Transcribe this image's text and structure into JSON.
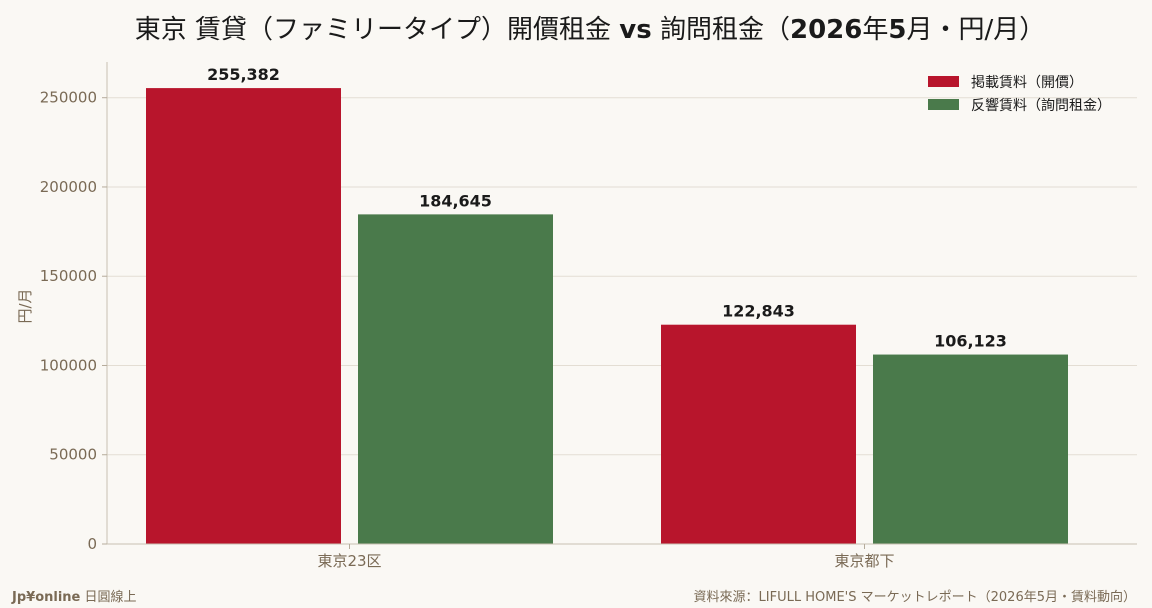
{
  "chart_data": {
    "type": "bar",
    "title_main": "東京 賃貸（ファミリータイプ）開價租金 ",
    "title_vs": "vs",
    "title_mid": " 詢問租金（",
    "title_year": "2026",
    "title_nen": "年",
    "title_month": "5",
    "title_tail": "月・円/月）",
    "ylabel": "円/月",
    "xlabel": "",
    "categories": [
      "東京23区",
      "東京都下"
    ],
    "series": [
      {
        "name": "掲載賃料（開價）",
        "color": "#b8152c",
        "values": [
          255382,
          122843
        ],
        "labels": [
          "255,382",
          "122,843"
        ]
      },
      {
        "name": "反響賃料（詢問租金）",
        "color": "#4a7a4b",
        "values": [
          184645,
          106123
        ],
        "labels": [
          "184,645",
          "106,123"
        ]
      }
    ],
    "ylim": [
      0,
      270000
    ],
    "yticks": [
      0,
      50000,
      100000,
      150000,
      200000,
      250000
    ],
    "grid": true,
    "legend_position": "top-right"
  },
  "footer": {
    "brand": "Jp¥online",
    "brand_suffix": " 日圓線上",
    "source": "資料來源：LIFULL HOME'S マーケットレポート（2026年5月・賃料動向）"
  }
}
